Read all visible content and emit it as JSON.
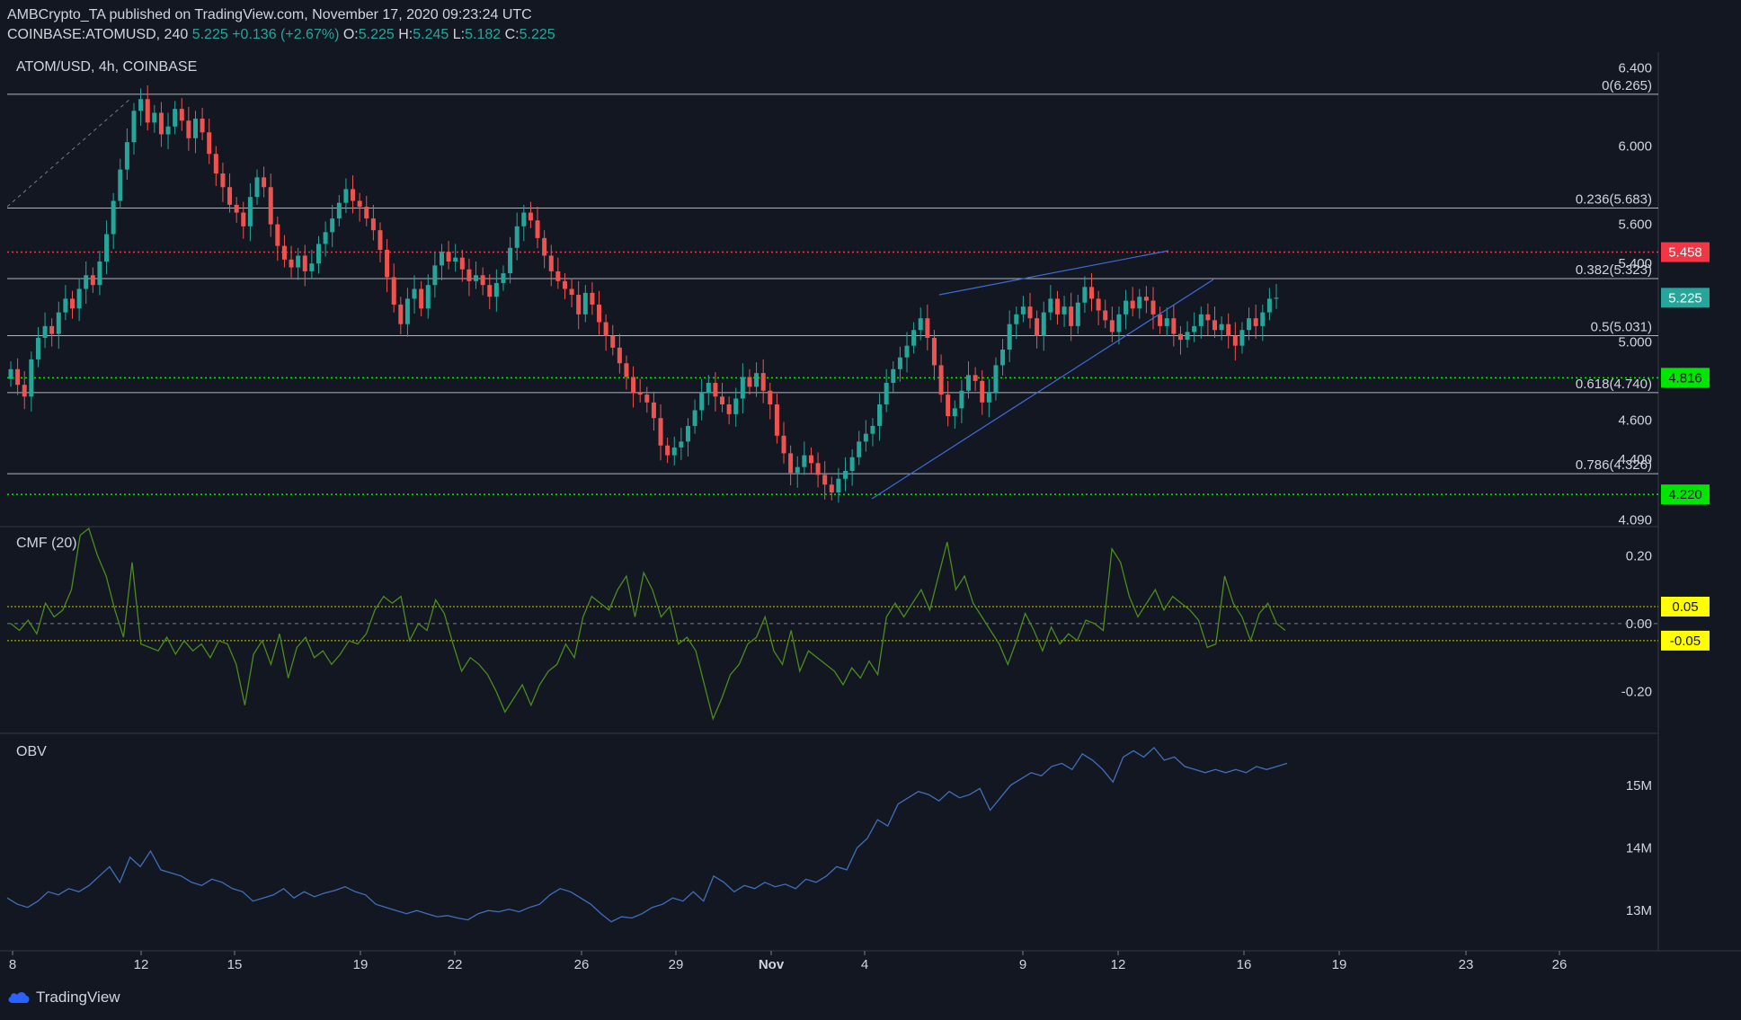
{
  "header": {
    "line1": "AMBCrypto_TA published on TradingView.com, November 17, 2020 09:23:24 UTC",
    "symbol": "COINBASE:ATOMUSD, 240",
    "price": "5.225",
    "change": "+0.136 (+2.67%)",
    "o_label": "O:",
    "o": "5.225",
    "h_label": "H:",
    "h": "5.245",
    "l_label": "L:",
    "l": "5.182",
    "c_label": "C:",
    "c": "5.225"
  },
  "footer": {
    "brand": "TradingView"
  },
  "colors": {
    "background": "#131722",
    "up": "#26a69a",
    "down": "#ef5350",
    "cmf_line": "#4c8c1e",
    "obv_line": "#3f6fba",
    "fib_line": "#b2b5be",
    "red_level": "#f23645",
    "green_level": "#00e600",
    "yellow_label": "#ffff00",
    "wedge": "#3d6bd6"
  },
  "chart_data": [
    {
      "type": "candlestick",
      "title": "ATOM/USD, 4h, COINBASE",
      "y_ticks": [
        "6.400",
        "6.000",
        "5.600",
        "5.400",
        "5.000",
        "4.600",
        "4.400",
        "4.090"
      ],
      "y_tick_values": [
        6.4,
        6.0,
        5.6,
        5.4,
        5.0,
        4.6,
        4.4,
        4.09
      ],
      "x_ticks": [
        "8",
        "12",
        "15",
        "19",
        "22",
        "26",
        "29",
        "Nov",
        "4",
        "9",
        "12",
        "16",
        "19",
        "23",
        "26"
      ],
      "ylim": [
        4.06,
        6.48
      ],
      "fib_levels": [
        {
          "label": "0(6.265)",
          "value": 6.265
        },
        {
          "label": "0.236(5.683)",
          "value": 5.683
        },
        {
          "label": "0.382(5.323)",
          "value": 5.323
        },
        {
          "label": "0.5(5.031)",
          "value": 5.031
        },
        {
          "label": "0.618(4.740)",
          "value": 4.74
        },
        {
          "label": "0.786(4.326)",
          "value": 4.326
        }
      ],
      "horizontal_levels": [
        {
          "label": "5.458",
          "value": 5.458,
          "color": "#f23645"
        },
        {
          "label": "4.816",
          "value": 4.816,
          "color": "#00e600"
        },
        {
          "label": "4.220",
          "value": 4.22,
          "color": "#00e600"
        }
      ],
      "current_price_label": "5.225",
      "current_price": 5.225,
      "closes": [
        4.86,
        4.78,
        4.72,
        4.91,
        5.02,
        5.08,
        5.04,
        5.15,
        5.22,
        5.17,
        5.27,
        5.34,
        5.29,
        5.41,
        5.55,
        5.72,
        5.88,
        6.02,
        6.18,
        6.24,
        6.12,
        6.17,
        6.06,
        6.1,
        6.19,
        6.13,
        6.04,
        6.14,
        6.07,
        5.96,
        5.86,
        5.79,
        5.7,
        5.66,
        5.59,
        5.74,
        5.84,
        5.79,
        5.6,
        5.49,
        5.42,
        5.38,
        5.44,
        5.36,
        5.4,
        5.5,
        5.56,
        5.63,
        5.71,
        5.78,
        5.72,
        5.69,
        5.63,
        5.57,
        5.47,
        5.33,
        5.19,
        5.09,
        5.22,
        5.27,
        5.17,
        5.29,
        5.39,
        5.46,
        5.41,
        5.43,
        5.37,
        5.31,
        5.34,
        5.29,
        5.23,
        5.3,
        5.35,
        5.48,
        5.59,
        5.66,
        5.62,
        5.53,
        5.44,
        5.36,
        5.31,
        5.27,
        5.24,
        5.14,
        5.25,
        5.19,
        5.1,
        5.03,
        4.97,
        4.89,
        4.82,
        4.74,
        4.73,
        4.69,
        4.61,
        4.47,
        4.42,
        4.46,
        4.49,
        4.57,
        4.65,
        4.74,
        4.79,
        4.72,
        4.68,
        4.63,
        4.71,
        4.82,
        4.77,
        4.84,
        4.75,
        4.68,
        4.52,
        4.43,
        4.33,
        4.36,
        4.42,
        4.38,
        4.32,
        4.27,
        4.23,
        4.3,
        4.34,
        4.41,
        4.49,
        4.53,
        4.57,
        4.68,
        4.79,
        4.86,
        4.92,
        4.98,
        5.06,
        5.12,
        5.02,
        4.88,
        4.73,
        4.62,
        4.66,
        4.75,
        4.83,
        4.8,
        4.69,
        4.74,
        4.88,
        4.96,
        5.09,
        5.14,
        5.18,
        5.12,
        5.03,
        5.15,
        5.22,
        5.14,
        5.18,
        5.08,
        5.2,
        5.28,
        5.22,
        5.16,
        5.11,
        5.05,
        5.14,
        5.21,
        5.17,
        5.23,
        5.21,
        5.14,
        5.08,
        5.12,
        5.04,
        5.01,
        5.05,
        5.08,
        5.14,
        5.11,
        5.06,
        5.09,
        5.03,
        4.98,
        5.06,
        5.12,
        5.08,
        5.15,
        5.22,
        5.225
      ]
    },
    {
      "type": "line",
      "title": "CMF (20)",
      "y_ticks": [
        "0.20",
        "0.00",
        "-0.20"
      ],
      "y_tick_values": [
        0.2,
        0.0,
        -0.2
      ],
      "ylim": [
        -0.32,
        0.28
      ],
      "levels": [
        {
          "label": "0.05",
          "value": 0.05
        },
        {
          "label": "-0.05",
          "value": -0.05
        }
      ],
      "values": [
        0.0,
        -0.02,
        0.01,
        -0.03,
        0.06,
        0.02,
        0.04,
        0.1,
        0.26,
        0.28,
        0.2,
        0.14,
        0.04,
        -0.04,
        0.18,
        -0.06,
        -0.07,
        -0.08,
        -0.04,
        -0.09,
        -0.05,
        -0.08,
        -0.06,
        -0.1,
        -0.05,
        -0.06,
        -0.12,
        -0.24,
        -0.09,
        -0.05,
        -0.12,
        -0.03,
        -0.16,
        -0.07,
        -0.04,
        -0.1,
        -0.08,
        -0.12,
        -0.09,
        -0.05,
        -0.06,
        -0.03,
        0.04,
        0.08,
        0.06,
        0.08,
        -0.05,
        0.0,
        -0.02,
        0.07,
        0.03,
        -0.06,
        -0.14,
        -0.1,
        -0.12,
        -0.15,
        -0.2,
        -0.26,
        -0.22,
        -0.18,
        -0.24,
        -0.18,
        -0.14,
        -0.12,
        -0.06,
        -0.1,
        0.02,
        0.08,
        0.06,
        0.04,
        0.1,
        0.14,
        0.02,
        0.15,
        0.1,
        0.02,
        0.05,
        -0.06,
        -0.04,
        -0.08,
        -0.18,
        -0.28,
        -0.22,
        -0.15,
        -0.12,
        -0.06,
        -0.04,
        0.02,
        -0.08,
        -0.12,
        -0.02,
        -0.14,
        -0.08,
        -0.1,
        -0.12,
        -0.14,
        -0.18,
        -0.13,
        -0.16,
        -0.11,
        -0.15,
        0.02,
        0.06,
        0.02,
        0.06,
        0.1,
        0.04,
        0.14,
        0.24,
        0.1,
        0.14,
        0.06,
        0.02,
        -0.02,
        -0.06,
        -0.12,
        -0.05,
        0.03,
        -0.02,
        -0.08,
        -0.01,
        -0.06,
        -0.03,
        -0.05,
        0.01,
        0.0,
        -0.02,
        0.22,
        0.18,
        0.08,
        0.02,
        0.06,
        0.1,
        0.04,
        0.08,
        0.06,
        0.04,
        0.01,
        -0.07,
        -0.06,
        0.14,
        0.06,
        0.02,
        -0.05,
        0.03,
        0.06,
        0.0,
        -0.02
      ]
    },
    {
      "type": "line",
      "title": "OBV",
      "y_ticks": [
        "15M",
        "14M",
        "13M"
      ],
      "y_tick_values": [
        15,
        14,
        13
      ],
      "ylim": [
        12.4,
        15.8
      ],
      "values": [
        13.2,
        13.1,
        13.05,
        13.15,
        13.3,
        13.25,
        13.35,
        13.3,
        13.4,
        13.55,
        13.7,
        13.45,
        13.85,
        13.7,
        13.95,
        13.65,
        13.6,
        13.55,
        13.45,
        13.4,
        13.5,
        13.45,
        13.35,
        13.3,
        13.15,
        13.2,
        13.25,
        13.35,
        13.2,
        13.3,
        13.22,
        13.28,
        13.32,
        13.38,
        13.3,
        13.25,
        13.1,
        13.05,
        13.0,
        12.95,
        13.0,
        12.95,
        12.9,
        12.92,
        12.88,
        12.85,
        12.95,
        13.0,
        12.98,
        13.02,
        12.98,
        13.05,
        13.1,
        13.25,
        13.35,
        13.3,
        13.2,
        13.1,
        12.95,
        12.82,
        12.9,
        12.88,
        12.95,
        13.05,
        13.1,
        13.2,
        13.15,
        13.3,
        13.15,
        13.55,
        13.45,
        13.3,
        13.4,
        13.35,
        13.45,
        13.38,
        13.42,
        13.35,
        13.5,
        13.45,
        13.55,
        13.7,
        13.65,
        14.0,
        14.15,
        14.45,
        14.35,
        14.7,
        14.8,
        14.9,
        14.85,
        14.75,
        14.9,
        14.8,
        14.85,
        14.95,
        14.6,
        14.8,
        15.0,
        15.1,
        15.2,
        15.15,
        15.3,
        15.35,
        15.25,
        15.5,
        15.4,
        15.25,
        15.05,
        15.45,
        15.55,
        15.45,
        15.6,
        15.4,
        15.45,
        15.3,
        15.25,
        15.2,
        15.25,
        15.2,
        15.25,
        15.2,
        15.3,
        15.25,
        15.3,
        15.35
      ]
    }
  ]
}
